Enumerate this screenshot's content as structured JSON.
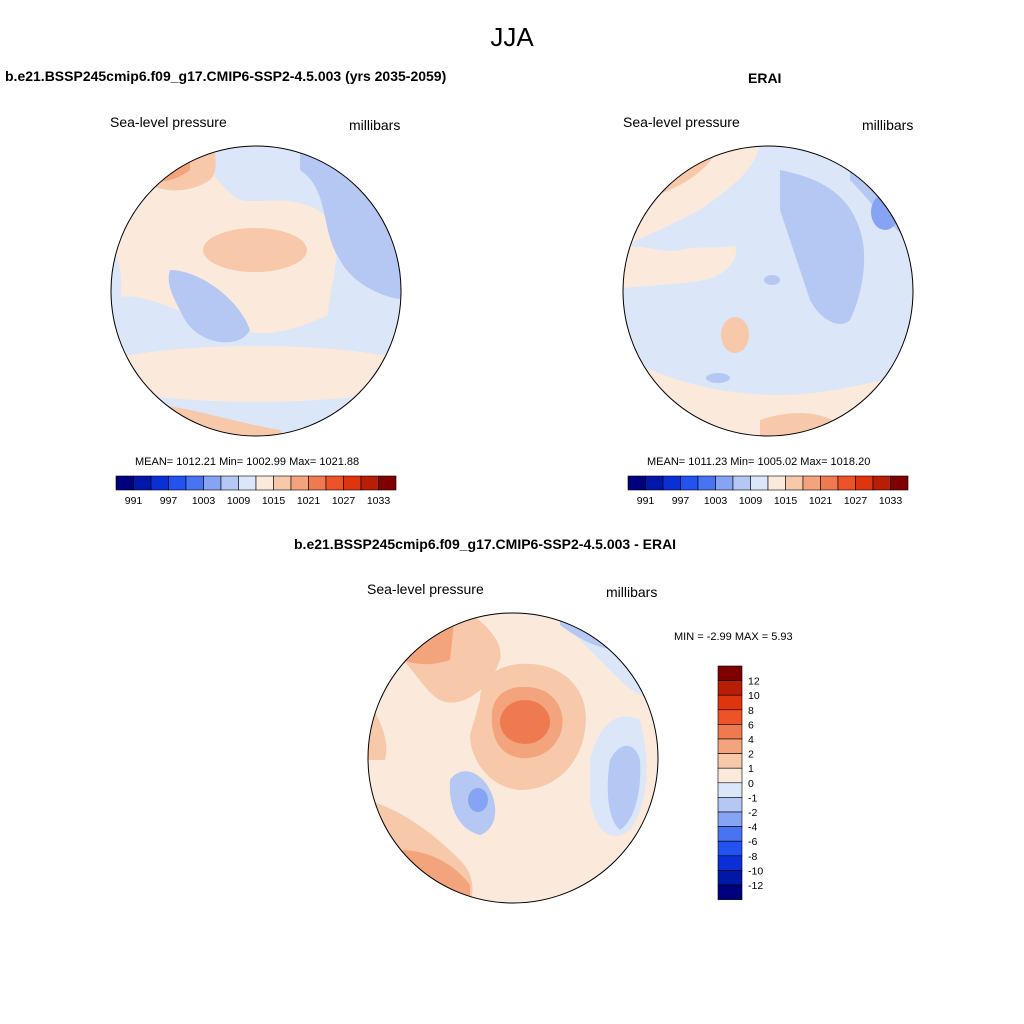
{
  "main_title": "JJA",
  "panels": {
    "model": {
      "title": "b.e21.BSSP245cmip6.f09_g17.CMIP6-SSP2-4.5.003 (yrs 2035-2059)",
      "variable": "Sea-level pressure",
      "units": "millibars",
      "stats": "MEAN= 1012.21  Min= 1002.99  Max= 1021.88"
    },
    "obs": {
      "title": "ERAI",
      "variable": "Sea-level pressure",
      "units": "millibars",
      "stats": "MEAN= 1011.23  Min= 1005.02  Max= 1018.20"
    },
    "diff": {
      "title": "b.e21.BSSP245cmip6.f09_g17.CMIP6-SSP2-4.5.003 - ERAI",
      "variable": "Sea-level pressure",
      "units": "millibars",
      "minmax": "MIN =  -2.99 MAX =   5.93"
    }
  },
  "colorbars": {
    "absolute": {
      "labels": [
        "991",
        "997",
        "1003",
        "1009",
        "1015",
        "1021",
        "1027",
        "1033"
      ],
      "colors": [
        "#00007f",
        "#0018a8",
        "#0a2fd4",
        "#2452f0",
        "#4874f2",
        "#86a3f4",
        "#b5c8f4",
        "#dbe6f8",
        "#fbeadb",
        "#f7c8aa",
        "#f4a47c",
        "#f07a50",
        "#ec5428",
        "#e0340e",
        "#b81d05",
        "#7f0000"
      ]
    },
    "difference": {
      "labels": [
        "12",
        "10",
        "8",
        "6",
        "4",
        "2",
        "1",
        "0",
        "-1",
        "-2",
        "-4",
        "-6",
        "-8",
        "-10",
        "-12"
      ],
      "colors": [
        "#7f0000",
        "#b81d05",
        "#e0340e",
        "#ec5428",
        "#f07a50",
        "#f4a47c",
        "#f7c8aa",
        "#fbeadb",
        "#dbe6f8",
        "#b5c8f4",
        "#86a3f4",
        "#4874f2",
        "#2452f0",
        "#0a2fd4",
        "#0018a8",
        "#00007f"
      ]
    }
  }
}
